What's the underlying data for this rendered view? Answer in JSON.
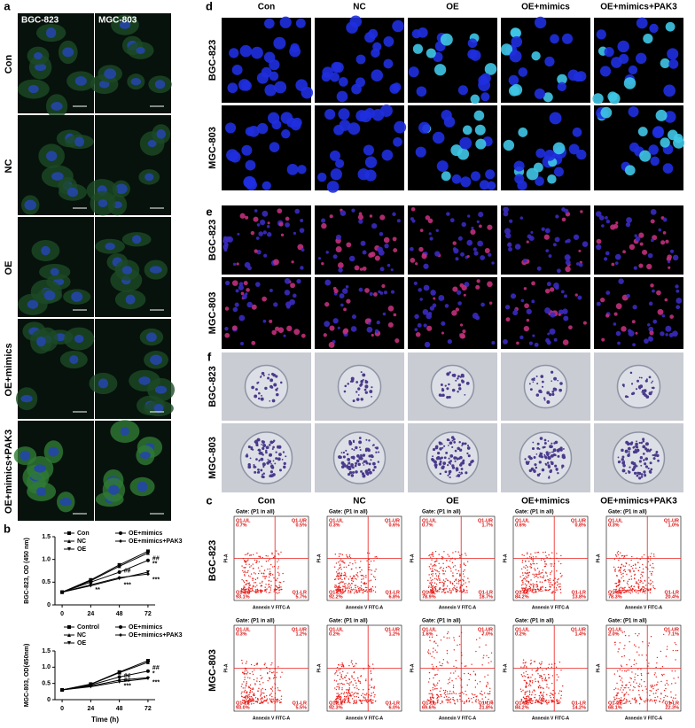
{
  "panel_labels": [
    "a",
    "b",
    "c",
    "d",
    "e",
    "f"
  ],
  "panel_a": {
    "columns": [
      "BGC-823",
      "MGC-803"
    ],
    "rows": [
      "Con",
      "NC",
      "OE",
      "OE+mimics",
      "OE+mimics+PAK3"
    ]
  },
  "panel_d": {
    "columns": [
      "Con",
      "NC",
      "OE",
      "OE+mimics",
      "OE+mimics+PAK3"
    ],
    "rows": [
      "BGC-823",
      "MGC-803"
    ]
  },
  "panel_e": {
    "rows": [
      "BGC-823",
      "MGC-803"
    ]
  },
  "panel_f": {
    "rows": [
      "BGC-823",
      "MGC-803"
    ]
  },
  "panel_c": {
    "columns": [
      "Con",
      "NC",
      "OE",
      "OE+mimics",
      "OE+mimics+PAK3"
    ],
    "rows": [
      "BGC-823",
      "MGC-803"
    ],
    "gate": "Gate: (P1 in all)",
    "x_label": "Annexin V FITC-A",
    "y_label": "PI-A",
    "quadrants": [
      "Q1-UL",
      "Q1-UR",
      "Q1-LL",
      "Q1-LR"
    ],
    "values": [
      [
        [
          "0.7%",
          "0.5%",
          "93.1%",
          "5.7%"
        ],
        [
          "0.3%",
          "0.6%",
          "92.2%",
          "6.8%"
        ],
        [
          "0.7%",
          "1.7%",
          "78.9%",
          "18.7%"
        ],
        [
          "0.6%",
          "0.8%",
          "84.2%",
          "13.8%"
        ],
        [
          "0.3%",
          "1.0%",
          "78.3%",
          "20.4%"
        ]
      ],
      [
        [
          "0.3%",
          "1.2%",
          "93.0%",
          "5.5%"
        ],
        [
          "0.2%",
          "1.2%",
          "92.3%",
          "6.0%"
        ],
        [
          "1.6%",
          "7.0%",
          "69.6%",
          "21.8%"
        ],
        [
          "0.2%",
          "1.4%",
          "84.2%",
          "14.2%"
        ],
        [
          "2.0%",
          "7.1%",
          "68.1%",
          "22.3%"
        ]
      ]
    ]
  },
  "chart_data": [
    {
      "type": "line",
      "y_label": "BGC-823, OD (450 nm)",
      "x": [
        0,
        24,
        48,
        72
      ],
      "xlim": [
        -6,
        78
      ],
      "xticks": [
        0,
        24,
        48,
        72
      ],
      "ylim": [
        0,
        1.5
      ],
      "yticks": [
        0,
        0.5,
        {
          "value": 1.0,
          "label": "1.0"
        },
        1.5
      ],
      "series": [
        {
          "name": "Con",
          "color": "#000000",
          "marker": "square",
          "values": [
            0.28,
            0.55,
            0.88,
            1.18
          ]
        },
        {
          "name": "NC",
          "color": "#000000",
          "marker": "triangle",
          "values": [
            0.28,
            0.53,
            0.85,
            1.14
          ]
        },
        {
          "name": "OE",
          "color": "#000000",
          "marker": "triangle-down",
          "values": [
            0.28,
            0.42,
            0.58,
            0.72
          ]
        },
        {
          "name": "OE+mimics",
          "color": "#000000",
          "marker": "circle",
          "values": [
            0.28,
            0.5,
            0.72,
            0.98
          ]
        },
        {
          "name": "OE+mimics+PAK3",
          "color": "#000000",
          "marker": "diamond",
          "values": [
            0.28,
            0.44,
            0.6,
            0.68
          ]
        }
      ],
      "annotations": [
        {
          "text": "**",
          "x": 24,
          "y": 0.33
        },
        {
          "text": "##",
          "x": 48,
          "y": 0.75
        },
        {
          "text": "***",
          "x": 48,
          "y": 0.44
        },
        {
          "text": "##",
          "x": 72,
          "y": 1.02
        },
        {
          "text": "**",
          "x": 72,
          "y": 0.9
        },
        {
          "text": "***",
          "x": 72,
          "y": 0.55
        }
      ]
    },
    {
      "type": "line",
      "y_label": "MGC-803, OD(450nm)",
      "x_label": "Time (h)",
      "x": [
        0,
        24,
        48,
        72
      ],
      "xlim": [
        -6,
        78
      ],
      "xticks": [
        0,
        24,
        48,
        72
      ],
      "ylim": [
        0,
        1.5
      ],
      "yticks": [
        0,
        0.5,
        {
          "value": 1.0,
          "label": "1.0"
        },
        1.5
      ],
      "series": [
        {
          "name": "Control",
          "color": "#000000",
          "marker": "square",
          "values": [
            0.3,
            0.48,
            0.85,
            1.2
          ]
        },
        {
          "name": "NC",
          "color": "#000000",
          "marker": "triangle",
          "values": [
            0.3,
            0.47,
            0.83,
            1.15
          ]
        },
        {
          "name": "OE",
          "color": "#000000",
          "marker": "triangle-down",
          "values": [
            0.3,
            0.4,
            0.55,
            0.65
          ]
        },
        {
          "name": "OE+mimics",
          "color": "#000000",
          "marker": "circle",
          "values": [
            0.3,
            0.45,
            0.7,
            0.88
          ]
        },
        {
          "name": "OE+mimics+PAK3",
          "color": "#000000",
          "marker": "diamond",
          "values": [
            0.3,
            0.42,
            0.6,
            0.68
          ]
        }
      ],
      "annotations": [
        {
          "text": "##",
          "x": 48,
          "y": 0.73
        },
        {
          "text": "##",
          "x": 48,
          "y": 0.6
        },
        {
          "text": "***",
          "x": 48,
          "y": 0.42
        },
        {
          "text": "##",
          "x": 72,
          "y": 0.98
        },
        {
          "text": "*",
          "x": 72,
          "y": 0.8
        },
        {
          "text": "***",
          "x": 72,
          "y": 0.53
        }
      ]
    }
  ]
}
